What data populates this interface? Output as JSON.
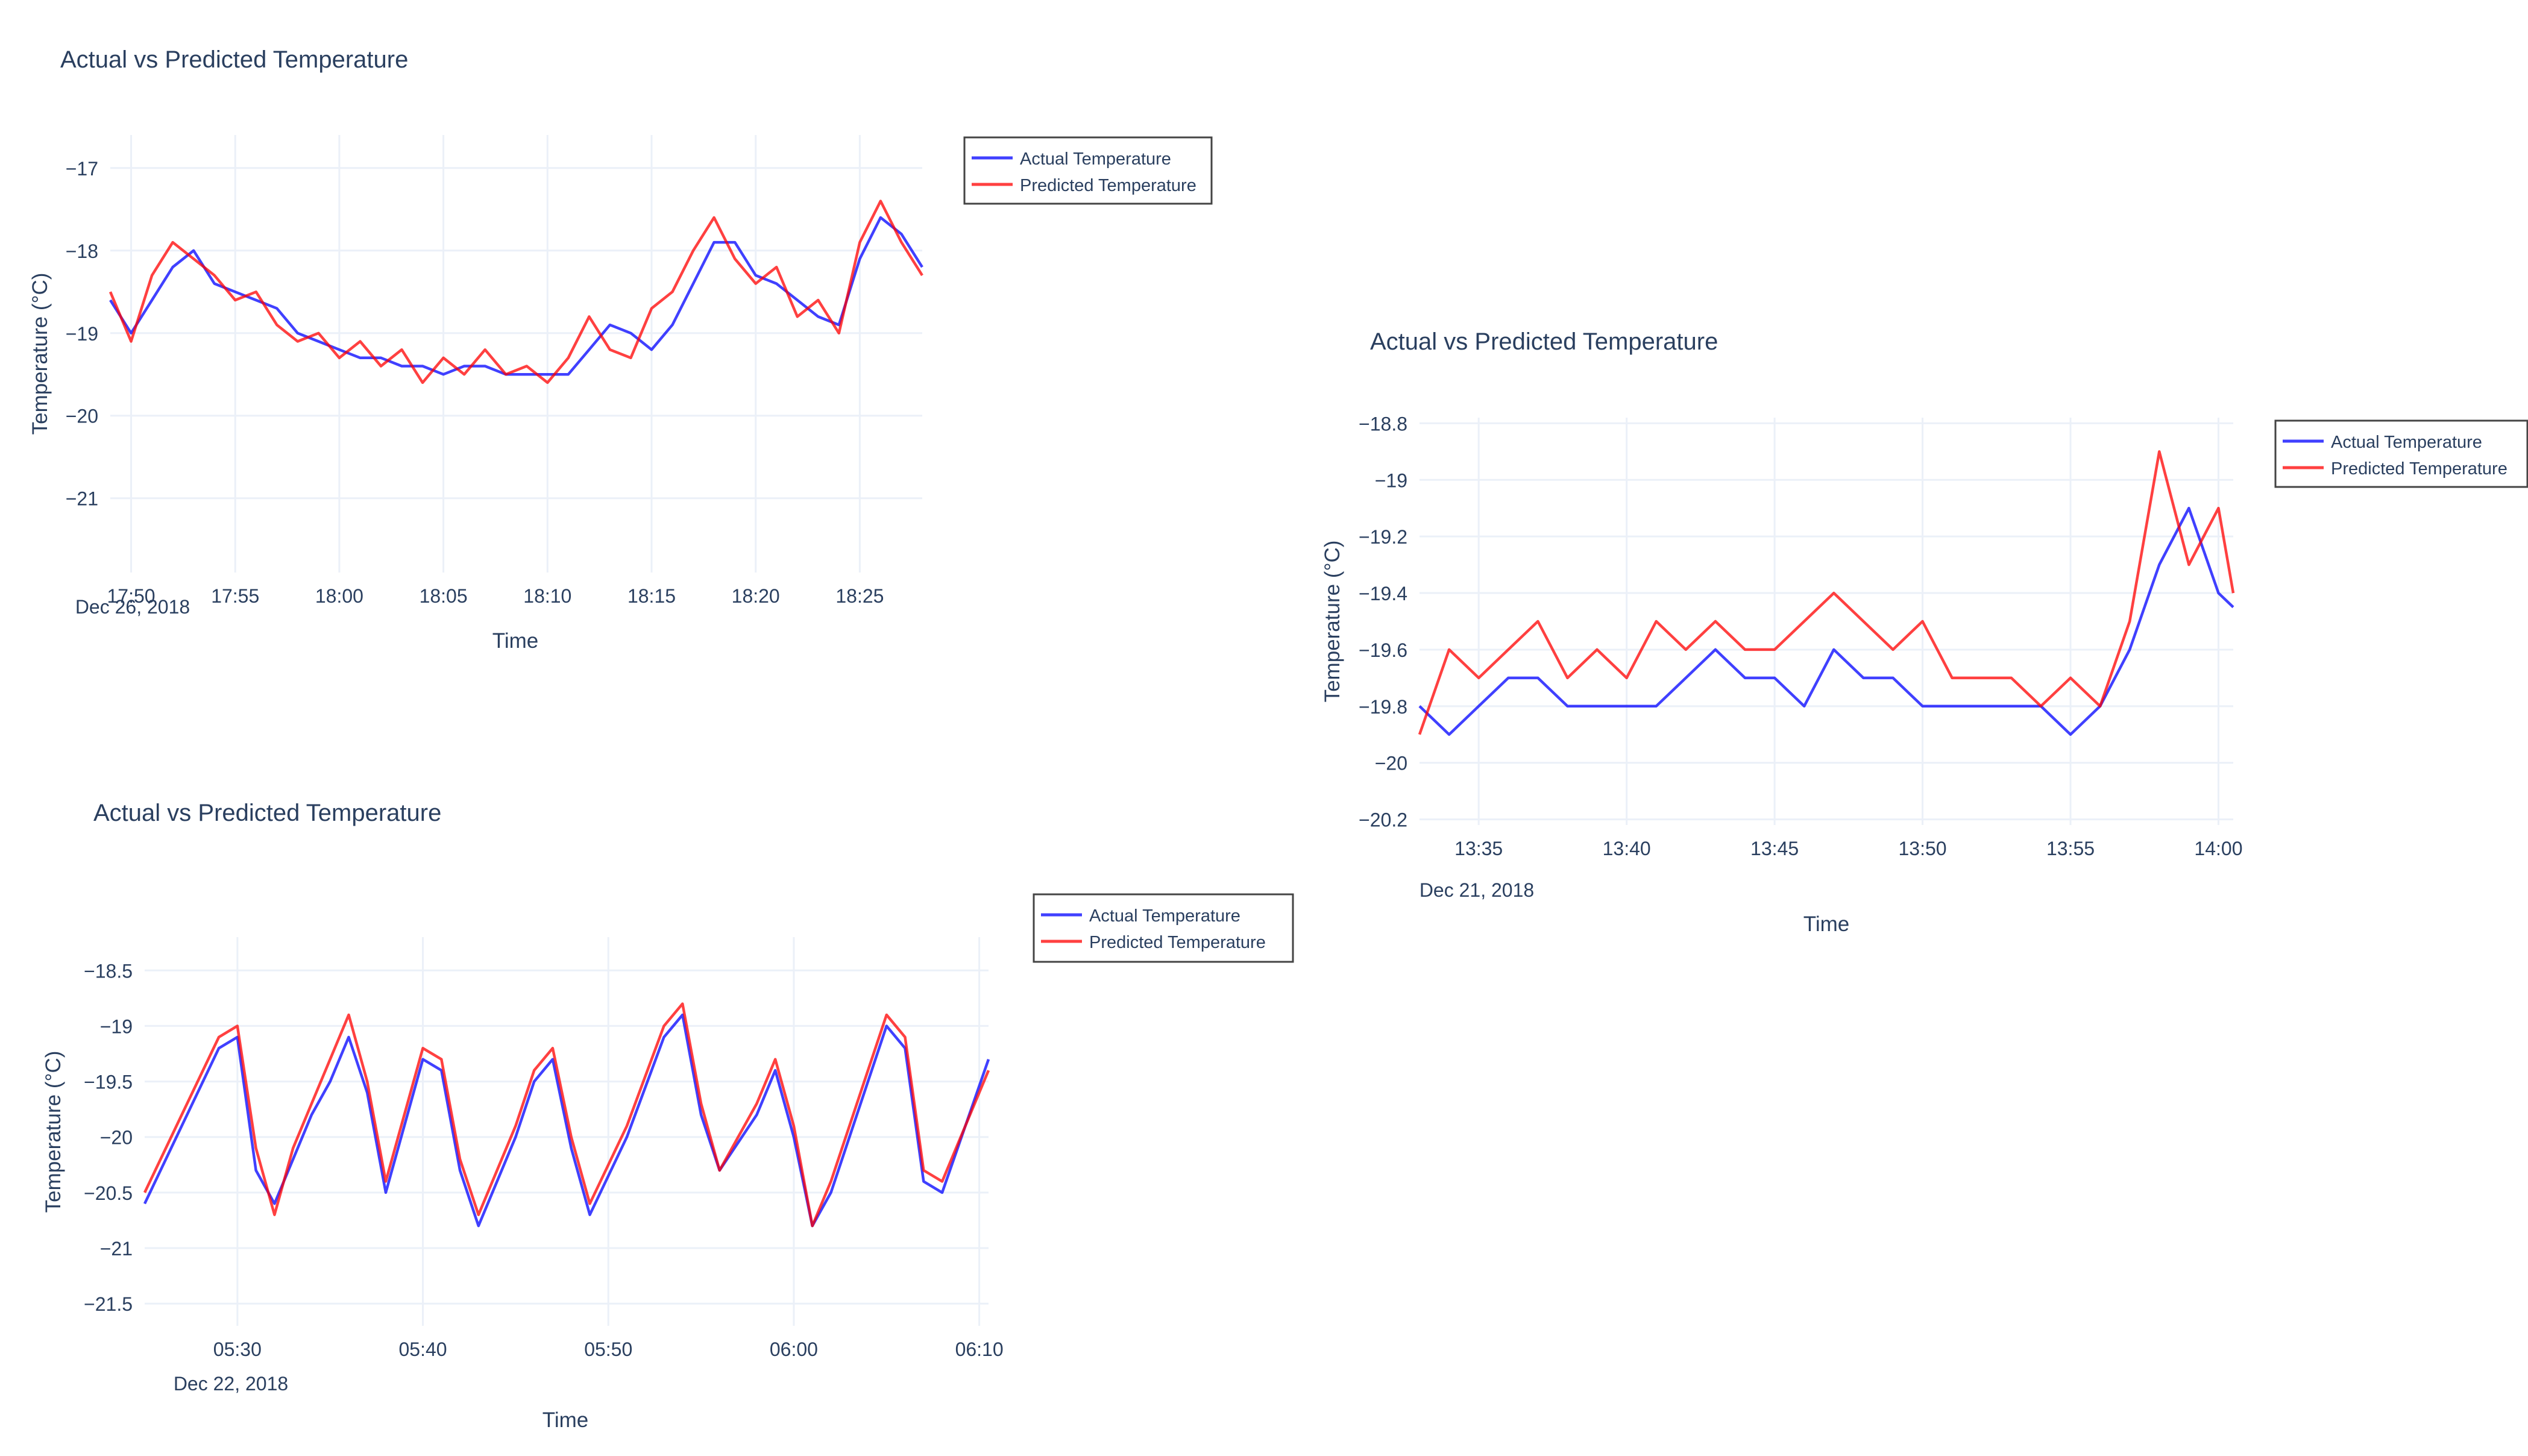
{
  "chart_data": [
    {
      "type": "line",
      "title": "Actual vs Predicted Temperature",
      "xlabel": "Time",
      "ylabel": "Temperature (°C)",
      "x_start": "2018-12-26 17:49:00",
      "x_end": "2018-12-26 18:28:00",
      "x_ticks": [
        "17:50",
        "17:55",
        "18:00",
        "18:05",
        "18:10",
        "18:15",
        "18:20",
        "18:25"
      ],
      "x_tick_date": "Dec 26, 2018",
      "ylim": [
        -21.9,
        -16.6
      ],
      "y_ticks": [
        -17,
        -18,
        -19,
        -20,
        -21
      ],
      "y_tick_labels": [
        "−17",
        "−18",
        "−19",
        "−20",
        "−21"
      ],
      "grid": true,
      "legend_position": "right",
      "series": [
        {
          "name": "Actual Temperature",
          "color": "#0000ff",
          "x": [
            "17:49",
            "17:50",
            "17:51",
            "17:52",
            "17:53",
            "17:54",
            "17:55",
            "17:56",
            "17:57",
            "17:58",
            "17:59",
            "18:00",
            "18:01",
            "18:02",
            "18:03",
            "18:04",
            "18:05",
            "18:06",
            "18:07",
            "18:08",
            "18:09",
            "18:10",
            "18:11",
            "18:12",
            "18:13",
            "18:14",
            "18:15",
            "18:16",
            "18:17",
            "18:18",
            "18:19",
            "18:20",
            "18:21",
            "18:22",
            "18:23",
            "18:24",
            "18:25",
            "18:26",
            "18:27",
            "18:28"
          ],
          "values": [
            -18.6,
            -19.0,
            -18.6,
            -18.2,
            -18.0,
            -18.4,
            -18.5,
            -18.6,
            -18.7,
            -19.0,
            -19.1,
            -19.2,
            -19.3,
            -19.3,
            -19.4,
            -19.4,
            -19.5,
            -19.4,
            -19.4,
            -19.5,
            -19.5,
            -19.5,
            -19.5,
            -19.2,
            -18.9,
            -19.0,
            -19.2,
            -18.9,
            -18.4,
            -17.9,
            -17.9,
            -18.3,
            -18.4,
            -18.6,
            -18.8,
            -18.9,
            -18.1,
            -17.6,
            -17.8,
            -18.2
          ]
        },
        {
          "name": "Predicted Temperature",
          "color": "#ff0000",
          "x": [
            "17:49",
            "17:50",
            "17:51",
            "17:52",
            "17:53",
            "17:54",
            "17:55",
            "17:56",
            "17:57",
            "17:58",
            "17:59",
            "18:00",
            "18:01",
            "18:02",
            "18:03",
            "18:04",
            "18:05",
            "18:06",
            "18:07",
            "18:08",
            "18:09",
            "18:10",
            "18:11",
            "18:12",
            "18:13",
            "18:14",
            "18:15",
            "18:16",
            "18:17",
            "18:18",
            "18:19",
            "18:20",
            "18:21",
            "18:22",
            "18:23",
            "18:24",
            "18:25",
            "18:26",
            "18:27",
            "18:28"
          ],
          "values": [
            -18.5,
            -19.1,
            -18.3,
            -17.9,
            -18.1,
            -18.3,
            -18.6,
            -18.5,
            -18.9,
            -19.1,
            -19.0,
            -19.3,
            -19.1,
            -19.4,
            -19.2,
            -19.6,
            -19.3,
            -19.5,
            -19.2,
            -19.5,
            -19.4,
            -19.6,
            -19.3,
            -18.8,
            -19.2,
            -19.3,
            -18.7,
            -18.5,
            -18.0,
            -17.6,
            -18.1,
            -18.4,
            -18.2,
            -18.8,
            -18.6,
            -19.0,
            -17.9,
            -17.4,
            -17.9,
            -18.3
          ]
        }
      ]
    },
    {
      "type": "line",
      "title": "Actual vs Predicted Temperature",
      "xlabel": "Time",
      "ylabel": "Temperature (°C)",
      "x_start": "2018-12-21 13:33:00",
      "x_end": "2018-12-21 14:00:30",
      "x_ticks": [
        "13:35",
        "13:40",
        "13:45",
        "13:50",
        "13:55",
        "14:00"
      ],
      "x_tick_date": "Dec 21, 2018",
      "ylim": [
        -20.22,
        -18.78
      ],
      "y_ticks": [
        -18.8,
        -19,
        -19.2,
        -19.4,
        -19.6,
        -19.8,
        -20,
        -20.2
      ],
      "y_tick_labels": [
        "−18.8",
        "−19",
        "−19.2",
        "−19.4",
        "−19.6",
        "−19.8",
        "−20",
        "−20.2"
      ],
      "grid": true,
      "legend_position": "right",
      "series": [
        {
          "name": "Actual Temperature",
          "color": "#0000ff",
          "x": [
            "13:33:00",
            "13:34:00",
            "13:35:00",
            "13:36:00",
            "13:37:00",
            "13:38:00",
            "13:39:00",
            "13:40:00",
            "13:41:00",
            "13:42:00",
            "13:43:00",
            "13:44:00",
            "13:45:00",
            "13:46:00",
            "13:47:00",
            "13:48:00",
            "13:49:00",
            "13:50:00",
            "13:51:00",
            "13:52:00",
            "13:53:00",
            "13:54:00",
            "13:55:00",
            "13:56:00",
            "13:57:00",
            "13:58:00",
            "13:59:00",
            "14:00:00",
            "14:00:30"
          ],
          "values": [
            -19.8,
            -19.9,
            -19.8,
            -19.7,
            -19.7,
            -19.8,
            -19.8,
            -19.8,
            -19.8,
            -19.7,
            -19.6,
            -19.7,
            -19.7,
            -19.8,
            -19.6,
            -19.7,
            -19.7,
            -19.8,
            -19.8,
            -19.8,
            -19.8,
            -19.8,
            -19.9,
            -19.8,
            -19.6,
            -19.3,
            -19.1,
            -19.4,
            -19.45
          ]
        },
        {
          "name": "Predicted Temperature",
          "color": "#ff0000",
          "x": [
            "13:33:00",
            "13:34:00",
            "13:35:00",
            "13:36:00",
            "13:37:00",
            "13:38:00",
            "13:39:00",
            "13:40:00",
            "13:41:00",
            "13:42:00",
            "13:43:00",
            "13:44:00",
            "13:45:00",
            "13:46:00",
            "13:47:00",
            "13:48:00",
            "13:49:00",
            "13:50:00",
            "13:51:00",
            "13:52:00",
            "13:53:00",
            "13:54:00",
            "13:55:00",
            "13:56:00",
            "13:57:00",
            "13:58:00",
            "13:59:00",
            "14:00:00",
            "14:00:30"
          ],
          "values": [
            -19.9,
            -19.6,
            -19.7,
            -19.6,
            -19.5,
            -19.7,
            -19.6,
            -19.7,
            -19.5,
            -19.6,
            -19.5,
            -19.6,
            -19.6,
            -19.5,
            -19.4,
            -19.5,
            -19.6,
            -19.5,
            -19.7,
            -19.7,
            -19.7,
            -19.8,
            -19.7,
            -19.8,
            -19.5,
            -18.9,
            -19.3,
            -19.1,
            -19.4
          ]
        }
      ]
    },
    {
      "type": "line",
      "title": "Actual vs Predicted Temperature",
      "xlabel": "Time",
      "ylabel": "Temperature (°C)",
      "x_start": "2018-12-22 05:25:00",
      "x_end": "2018-12-22 06:10:30",
      "x_ticks": [
        "05:30",
        "05:40",
        "05:50",
        "06:00",
        "06:10"
      ],
      "x_tick_date": "Dec 22, 2018",
      "ylim": [
        -21.7,
        -18.2
      ],
      "y_ticks": [
        -18.5,
        -19,
        -19.5,
        -20,
        -20.5,
        -21,
        -21.5
      ],
      "y_tick_labels": [
        "−18.5",
        "−19",
        "−19.5",
        "−20",
        "−20.5",
        "−21",
        "−21.5"
      ],
      "grid": true,
      "legend_position": "right",
      "series": [
        {
          "name": "Actual Temperature",
          "color": "#0000ff",
          "x": [
            "05:25:00",
            "05:27:00",
            "05:29:00",
            "05:30:00",
            "05:31:00",
            "05:32:00",
            "05:33:00",
            "05:34:00",
            "05:35:00",
            "05:36:00",
            "05:37:00",
            "05:38:00",
            "05:40:00",
            "05:41:00",
            "05:42:00",
            "05:43:00",
            "05:45:00",
            "05:46:00",
            "05:47:00",
            "05:48:00",
            "05:49:00",
            "05:51:00",
            "05:53:00",
            "05:54:00",
            "05:55:00",
            "05:56:00",
            "05:58:00",
            "05:59:00",
            "06:00:00",
            "06:01:00",
            "06:02:00",
            "06:04:00",
            "06:05:00",
            "06:06:00",
            "06:07:00",
            "06:08:00",
            "06:10:30"
          ],
          "values": [
            -20.6,
            -19.9,
            -19.2,
            -19.1,
            -20.3,
            -20.6,
            -20.2,
            -19.8,
            -19.5,
            -19.1,
            -19.6,
            -20.5,
            -19.3,
            -19.4,
            -20.3,
            -20.8,
            -20.0,
            -19.5,
            -19.3,
            -20.1,
            -20.7,
            -20.0,
            -19.1,
            -18.9,
            -19.8,
            -20.3,
            -19.8,
            -19.4,
            -20.0,
            -20.8,
            -20.5,
            -19.5,
            -19.0,
            -19.2,
            -20.4,
            -20.5,
            -19.3
          ]
        },
        {
          "name": "Predicted Temperature",
          "color": "#ff0000",
          "x": [
            "05:25:00",
            "05:27:00",
            "05:29:00",
            "05:30:00",
            "05:31:00",
            "05:32:00",
            "05:33:00",
            "05:34:00",
            "05:35:00",
            "05:36:00",
            "05:37:00",
            "05:38:00",
            "05:40:00",
            "05:41:00",
            "05:42:00",
            "05:43:00",
            "05:45:00",
            "05:46:00",
            "05:47:00",
            "05:48:00",
            "05:49:00",
            "05:51:00",
            "05:53:00",
            "05:54:00",
            "05:55:00",
            "05:56:00",
            "05:58:00",
            "05:59:00",
            "06:00:00",
            "06:01:00",
            "06:02:00",
            "06:04:00",
            "06:05:00",
            "06:06:00",
            "06:07:00",
            "06:08:00",
            "06:10:30"
          ],
          "values": [
            -20.5,
            -19.8,
            -19.1,
            -19.0,
            -20.1,
            -20.7,
            -20.1,
            -19.7,
            -19.3,
            -18.9,
            -19.5,
            -20.4,
            -19.2,
            -19.3,
            -20.2,
            -20.7,
            -19.9,
            -19.4,
            -19.2,
            -20.0,
            -20.6,
            -19.9,
            -19.0,
            -18.8,
            -19.7,
            -20.3,
            -19.7,
            -19.3,
            -19.9,
            -20.8,
            -20.4,
            -19.4,
            -18.9,
            -19.1,
            -20.3,
            -20.4,
            -19.4
          ]
        }
      ]
    }
  ]
}
